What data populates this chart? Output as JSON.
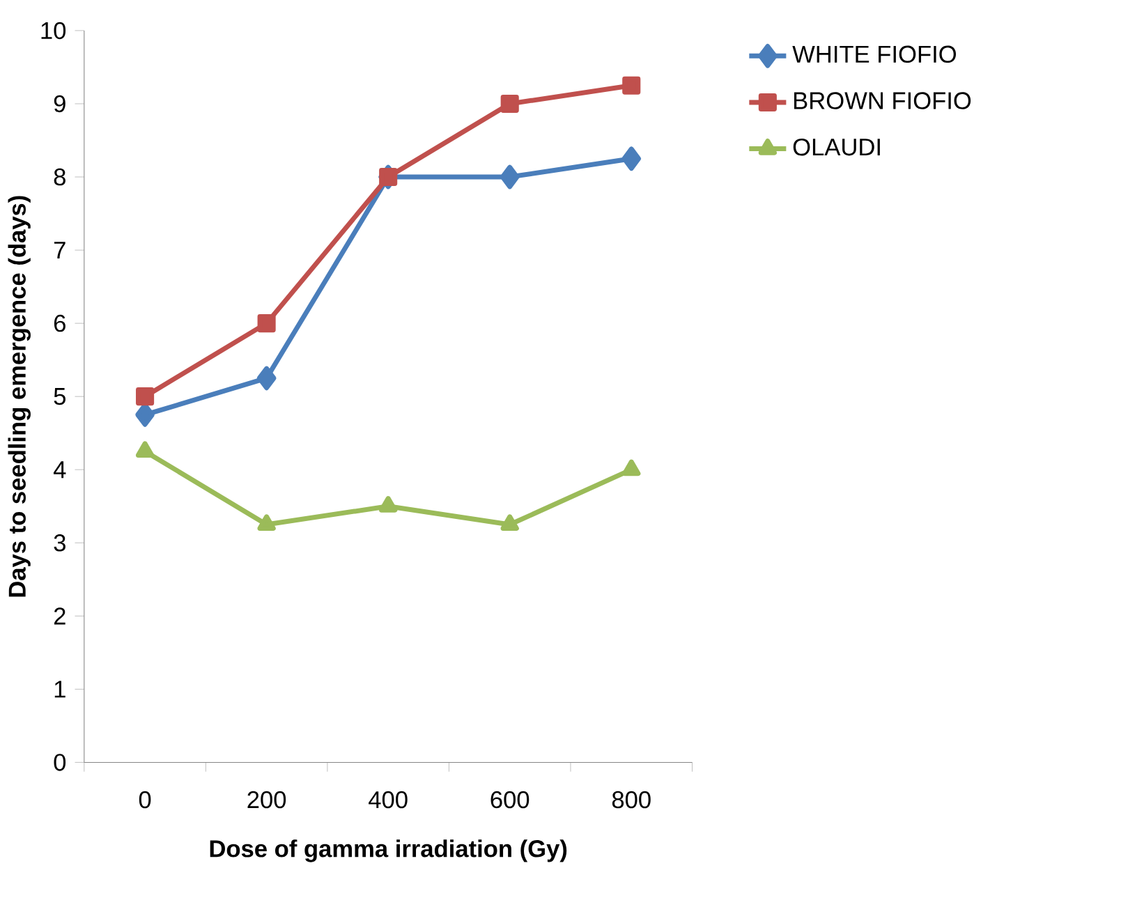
{
  "chart_data": {
    "type": "line",
    "xlabel": "Dose of gamma irradiation (Gy)",
    "ylabel": "Days to seedling emergence (days)",
    "categories": [
      "0",
      "200",
      "400",
      "600",
      "800"
    ],
    "series": [
      {
        "name": "WHITE FIOFIO",
        "color": "#4a7ebb",
        "marker": "diamond",
        "values": [
          4.75,
          5.25,
          8,
          8,
          8.25
        ]
      },
      {
        "name": "BROWN FIOFIO",
        "color": "#c0504d",
        "marker": "square",
        "values": [
          5,
          6,
          8,
          9,
          9.25
        ]
      },
      {
        "name": "OLAUDI",
        "color": "#9bbb59",
        "marker": "triangle",
        "values": [
          4.25,
          3.25,
          3.5,
          3.25,
          4
        ]
      }
    ],
    "ylim": [
      0,
      10
    ],
    "yticks": [
      0,
      1,
      2,
      3,
      4,
      5,
      6,
      7,
      8,
      9,
      10
    ],
    "legend": "right",
    "line_style": "solid"
  }
}
